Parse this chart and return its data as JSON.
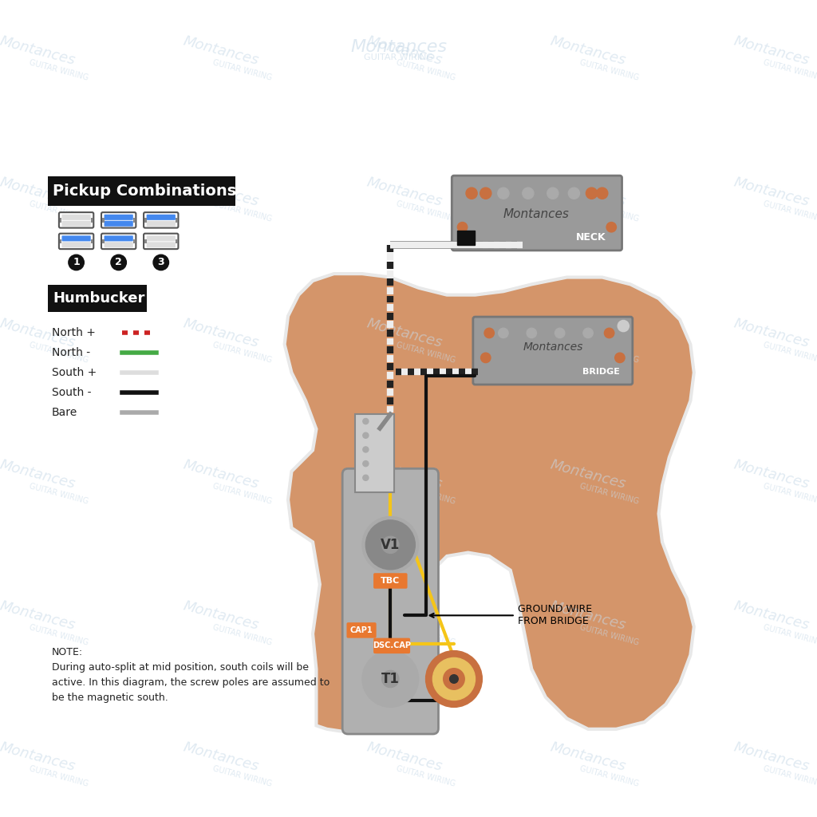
{
  "bg_color": "#ffffff",
  "watermark_color": "#c8dae8",
  "watermark_text": "Montances\nGUITAR WIRING",
  "guitar_body_color": "#d4956a",
  "guitar_body_gradient_top": "#c8a882",
  "guitar_body_outline": "#e8e8e8",
  "pickguard_color": "#d4956a",
  "control_plate_color": "#aaaaaa",
  "control_plate_dark": "#888888",
  "pickup_color": "#999999",
  "pickup_screw_color": "#c87040",
  "neck_label": "NECK",
  "bridge_label": "BRIDGE",
  "component_label_V1": "V1",
  "component_label_T1": "T1",
  "label_TBC": "TBC",
  "label_DSC_CAP": "DSC.CAP",
  "label_CAP1": "CAP1",
  "wire_black": "#111111",
  "wire_yellow": "#f5c518",
  "wire_green": "#44aa44",
  "wire_red": "#cc2222",
  "wire_white": "#dddddd",
  "wire_bare": "#aaaaaa",
  "pickup_combo_title": "Pickup Combinations",
  "humbucker_title": "Humbucker",
  "combo_labels": [
    "1",
    "2",
    "3"
  ],
  "north_plus_label": "North +",
  "north_minus_label": "North -",
  "south_plus_label": "South +",
  "south_minus_label": "South -",
  "bare_label": "Bare",
  "note_text": "NOTE:\nDuring auto-split at mid position, south coils will be\nactive. In this diagram, the screw poles are assumed to\nbe the magnetic south.",
  "ground_wire_label": "GROUND WIRE\nFROM BRIDGE",
  "orange_label_color": "#e87830",
  "zebra_wire_black": "#222222",
  "zebra_wire_white": "#eeeeee"
}
